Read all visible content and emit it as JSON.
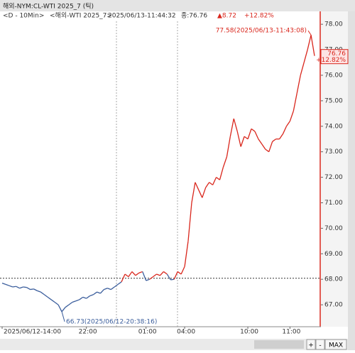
{
  "header": {
    "title": "해외-NYM:CL-WTI 2025_7 (틱)"
  },
  "info": {
    "period": "<D - 10Min>",
    "symbol": "<해외-WTI 2025_7>",
    "time": "2025/06/13-11:44:32",
    "close": "종:76.76",
    "change": "▲8.72",
    "percent": "+12.82%"
  },
  "controls": [
    "+",
    "-",
    "MAX"
  ],
  "chart_data": {
    "type": "line",
    "categories": [
      "2025/06/12-14:00",
      null,
      null,
      null,
      null,
      null,
      null,
      null,
      null,
      null,
      null,
      null,
      null,
      null,
      null,
      null,
      null,
      null,
      null,
      null,
      null,
      null,
      null,
      null,
      "22:00",
      null,
      null,
      null,
      null,
      null,
      null,
      null,
      null,
      null,
      null,
      null,
      null,
      null,
      null,
      null,
      null,
      "01:00",
      null,
      null,
      null,
      null,
      null,
      null,
      null,
      null,
      null,
      null,
      "04:00",
      null,
      null,
      null,
      null,
      null,
      null,
      null,
      null,
      null,
      null,
      null,
      null,
      null,
      null,
      null,
      null,
      null,
      "10:00",
      null,
      null,
      null,
      null,
      null,
      null,
      null,
      null,
      null,
      null,
      null,
      "11:00",
      null,
      null,
      null,
      null,
      null,
      null,
      null
    ],
    "values": [
      67.85,
      67.8,
      67.75,
      67.7,
      67.72,
      67.65,
      67.7,
      67.68,
      67.6,
      67.62,
      67.55,
      67.5,
      67.4,
      67.3,
      67.2,
      67.1,
      67.0,
      66.73,
      66.9,
      67.0,
      67.1,
      67.15,
      67.2,
      67.3,
      67.25,
      67.35,
      67.4,
      67.5,
      67.45,
      67.6,
      67.65,
      67.6,
      67.7,
      67.8,
      67.9,
      68.2,
      68.1,
      68.3,
      68.15,
      68.25,
      68.3,
      67.95,
      68.0,
      68.1,
      68.2,
      68.15,
      68.3,
      68.2,
      67.98,
      68.0,
      68.3,
      68.2,
      68.5,
      69.5,
      71.0,
      71.8,
      71.5,
      71.2,
      71.6,
      71.8,
      71.7,
      72.0,
      71.9,
      72.4,
      72.8,
      73.6,
      74.3,
      73.8,
      73.2,
      73.6,
      73.5,
      73.9,
      73.8,
      73.5,
      73.3,
      73.1,
      73.0,
      73.4,
      73.5,
      73.5,
      73.7,
      74.0,
      74.2,
      74.6,
      75.3,
      76.0,
      76.5,
      77.0,
      77.58,
      76.76
    ],
    "up_color": "#d9261c",
    "down_color": "#3a5d9c",
    "reference": 68.04,
    "ylim": [
      66.14,
      78.45
    ],
    "yticks": [
      {
        "value": 67,
        "label": "67.00"
      },
      {
        "value": 68,
        "label": "68.00"
      },
      {
        "value": 69,
        "label": "69.00"
      },
      {
        "value": 70,
        "label": "70.00"
      },
      {
        "value": 71,
        "label": "71.00"
      },
      {
        "value": 72,
        "label": "72.00"
      },
      {
        "value": 73,
        "label": "73.00"
      },
      {
        "value": 74,
        "label": "74.00"
      },
      {
        "value": 75,
        "label": "75.00"
      },
      {
        "value": 76,
        "label": "76.00"
      },
      {
        "value": 77,
        "label": "77.00"
      },
      {
        "value": 78,
        "label": "78.00"
      }
    ],
    "annotations": [
      {
        "value": 77.58,
        "text": "77.58(2025/06/13-11:43:08)"
      },
      {
        "value": 66.73,
        "text": "66.73(2025/06/12-20:38:16)"
      }
    ],
    "last": {
      "value": 76.76,
      "label": "76.76",
      "change": "+12.82%"
    }
  }
}
